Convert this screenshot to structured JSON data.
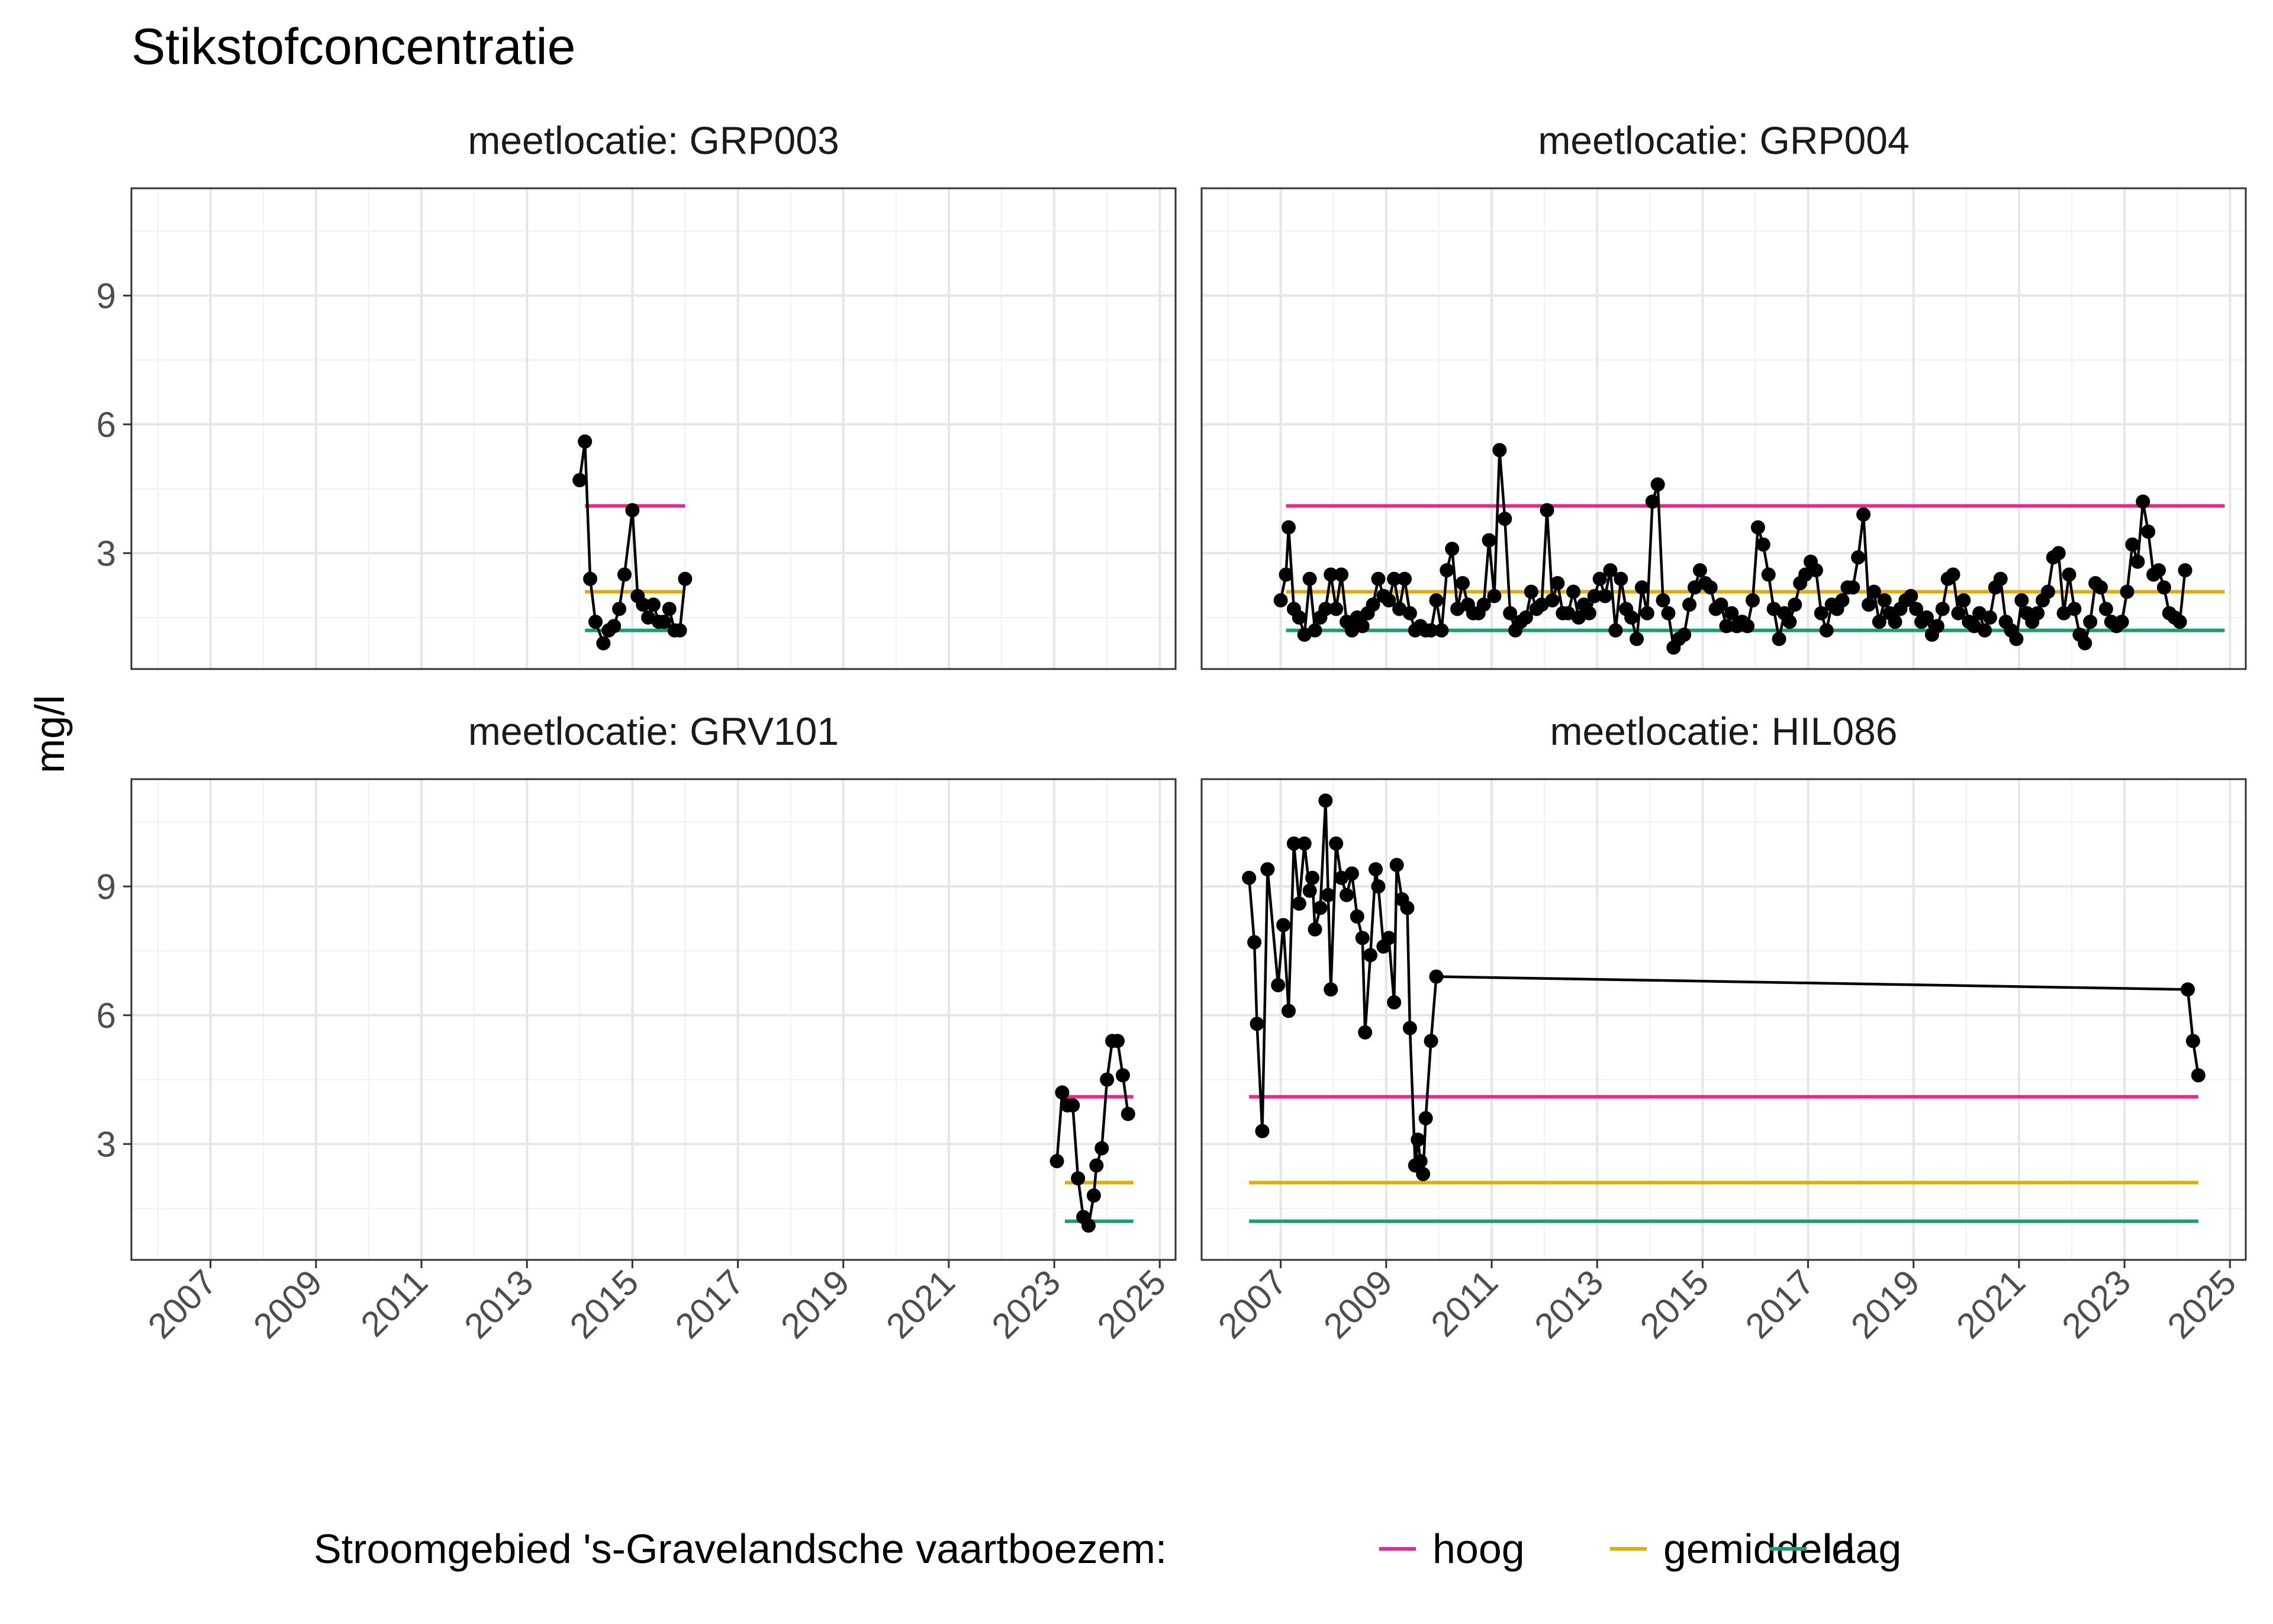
{
  "chart_data": {
    "type": "line",
    "title": "Stikstofconcentratie",
    "ylabel": "mg/l",
    "xlabel": "",
    "x_ticks": [
      "2007",
      "2009",
      "2011",
      "2013",
      "2015",
      "2017",
      "2019",
      "2021",
      "2023",
      "2025"
    ],
    "y_ticks": [
      3,
      6,
      9
    ],
    "xlim": [
      2005.5,
      2025.3
    ],
    "ylim": [
      0.3,
      11.5
    ],
    "grid": true,
    "legend": {
      "title": "Stroomgebied 's-Gravelandsche vaartboezem:",
      "position": "bottom",
      "items": [
        {
          "label": "hoog",
          "color": "#e7298a",
          "value": 4.1
        },
        {
          "label": "gemiddeld",
          "color": "#e6ab02",
          "value": 2.1
        },
        {
          "label": "laag",
          "color": "#1b9e77",
          "value": 1.2
        }
      ]
    },
    "panels": [
      {
        "name": "meetlocatie: GRP003",
        "ref_range": [
          2014.1,
          2016.0
        ],
        "points": [
          [
            2014.0,
            4.7
          ],
          [
            2014.1,
            5.6
          ],
          [
            2014.2,
            2.4
          ],
          [
            2014.3,
            1.4
          ],
          [
            2014.45,
            0.9
          ],
          [
            2014.55,
            1.2
          ],
          [
            2014.65,
            1.3
          ],
          [
            2014.75,
            1.7
          ],
          [
            2014.85,
            2.5
          ],
          [
            2015.0,
            4.0
          ],
          [
            2015.1,
            2.0
          ],
          [
            2015.2,
            1.8
          ],
          [
            2015.3,
            1.5
          ],
          [
            2015.4,
            1.8
          ],
          [
            2015.5,
            1.4
          ],
          [
            2015.6,
            1.4
          ],
          [
            2015.7,
            1.7
          ],
          [
            2015.8,
            1.2
          ],
          [
            2015.9,
            1.2
          ],
          [
            2016.0,
            2.4
          ]
        ]
      },
      {
        "name": "meetlocatie: GRP004",
        "ref_range": [
          2007.1,
          2024.9
        ],
        "points": [
          [
            2007.0,
            1.9
          ],
          [
            2007.1,
            2.5
          ],
          [
            2007.15,
            3.6
          ],
          [
            2007.25,
            1.7
          ],
          [
            2007.35,
            1.5
          ],
          [
            2007.45,
            1.1
          ],
          [
            2007.55,
            2.4
          ],
          [
            2007.65,
            1.2
          ],
          [
            2007.75,
            1.5
          ],
          [
            2007.85,
            1.7
          ],
          [
            2007.95,
            2.5
          ],
          [
            2008.05,
            1.7
          ],
          [
            2008.15,
            2.5
          ],
          [
            2008.25,
            1.4
          ],
          [
            2008.35,
            1.2
          ],
          [
            2008.45,
            1.5
          ],
          [
            2008.55,
            1.3
          ],
          [
            2008.65,
            1.6
          ],
          [
            2008.75,
            1.8
          ],
          [
            2008.85,
            2.4
          ],
          [
            2008.95,
            2.0
          ],
          [
            2009.05,
            1.9
          ],
          [
            2009.15,
            2.4
          ],
          [
            2009.25,
            1.7
          ],
          [
            2009.35,
            2.4
          ],
          [
            2009.45,
            1.6
          ],
          [
            2009.55,
            1.2
          ],
          [
            2009.65,
            1.3
          ],
          [
            2009.75,
            1.2
          ],
          [
            2009.85,
            1.2
          ],
          [
            2009.95,
            1.9
          ],
          [
            2010.05,
            1.2
          ],
          [
            2010.15,
            2.6
          ],
          [
            2010.25,
            3.1
          ],
          [
            2010.35,
            1.7
          ],
          [
            2010.45,
            2.3
          ],
          [
            2010.55,
            1.8
          ],
          [
            2010.65,
            1.6
          ],
          [
            2010.75,
            1.6
          ],
          [
            2010.85,
            1.8
          ],
          [
            2010.95,
            3.3
          ],
          [
            2011.05,
            2.0
          ],
          [
            2011.15,
            5.4
          ],
          [
            2011.25,
            3.8
          ],
          [
            2011.35,
            1.6
          ],
          [
            2011.45,
            1.2
          ],
          [
            2011.55,
            1.4
          ],
          [
            2011.65,
            1.5
          ],
          [
            2011.75,
            2.1
          ],
          [
            2011.85,
            1.7
          ],
          [
            2011.95,
            1.8
          ],
          [
            2012.05,
            4.0
          ],
          [
            2012.15,
            1.9
          ],
          [
            2012.25,
            2.3
          ],
          [
            2012.35,
            1.6
          ],
          [
            2012.45,
            1.6
          ],
          [
            2012.55,
            2.1
          ],
          [
            2012.65,
            1.5
          ],
          [
            2012.75,
            1.8
          ],
          [
            2012.85,
            1.6
          ],
          [
            2012.95,
            2.0
          ],
          [
            2013.05,
            2.4
          ],
          [
            2013.15,
            2.0
          ],
          [
            2013.25,
            2.6
          ],
          [
            2013.35,
            1.2
          ],
          [
            2013.45,
            2.4
          ],
          [
            2013.55,
            1.7
          ],
          [
            2013.65,
            1.5
          ],
          [
            2013.75,
            1.0
          ],
          [
            2013.85,
            2.2
          ],
          [
            2013.95,
            1.6
          ],
          [
            2014.05,
            4.2
          ],
          [
            2014.15,
            4.6
          ],
          [
            2014.25,
            1.9
          ],
          [
            2014.35,
            1.6
          ],
          [
            2014.45,
            0.8
          ],
          [
            2014.55,
            1.0
          ],
          [
            2014.65,
            1.1
          ],
          [
            2014.75,
            1.8
          ],
          [
            2014.85,
            2.2
          ],
          [
            2014.95,
            2.6
          ],
          [
            2015.05,
            2.3
          ],
          [
            2015.15,
            2.2
          ],
          [
            2015.25,
            1.7
          ],
          [
            2015.35,
            1.8
          ],
          [
            2015.45,
            1.3
          ],
          [
            2015.55,
            1.6
          ],
          [
            2015.65,
            1.3
          ],
          [
            2015.75,
            1.4
          ],
          [
            2015.85,
            1.3
          ],
          [
            2015.95,
            1.9
          ],
          [
            2016.05,
            3.6
          ],
          [
            2016.15,
            3.2
          ],
          [
            2016.25,
            2.5
          ],
          [
            2016.35,
            1.7
          ],
          [
            2016.45,
            1.0
          ],
          [
            2016.55,
            1.6
          ],
          [
            2016.65,
            1.4
          ],
          [
            2016.75,
            1.8
          ],
          [
            2016.85,
            2.3
          ],
          [
            2016.95,
            2.5
          ],
          [
            2017.05,
            2.8
          ],
          [
            2017.15,
            2.6
          ],
          [
            2017.25,
            1.6
          ],
          [
            2017.35,
            1.2
          ],
          [
            2017.45,
            1.8
          ],
          [
            2017.55,
            1.7
          ],
          [
            2017.65,
            1.9
          ],
          [
            2017.75,
            2.2
          ],
          [
            2017.85,
            2.2
          ],
          [
            2017.95,
            2.9
          ],
          [
            2018.05,
            3.9
          ],
          [
            2018.15,
            1.8
          ],
          [
            2018.25,
            2.1
          ],
          [
            2018.35,
            1.4
          ],
          [
            2018.45,
            1.9
          ],
          [
            2018.55,
            1.6
          ],
          [
            2018.65,
            1.4
          ],
          [
            2018.75,
            1.7
          ],
          [
            2018.85,
            1.9
          ],
          [
            2018.95,
            2.0
          ],
          [
            2019.05,
            1.7
          ],
          [
            2019.15,
            1.4
          ],
          [
            2019.25,
            1.5
          ],
          [
            2019.35,
            1.1
          ],
          [
            2019.45,
            1.3
          ],
          [
            2019.55,
            1.7
          ],
          [
            2019.65,
            2.4
          ],
          [
            2019.75,
            2.5
          ],
          [
            2019.85,
            1.6
          ],
          [
            2019.95,
            1.9
          ],
          [
            2020.05,
            1.4
          ],
          [
            2020.15,
            1.3
          ],
          [
            2020.25,
            1.6
          ],
          [
            2020.35,
            1.2
          ],
          [
            2020.45,
            1.5
          ],
          [
            2020.55,
            2.2
          ],
          [
            2020.65,
            2.4
          ],
          [
            2020.75,
            1.4
          ],
          [
            2020.85,
            1.2
          ],
          [
            2020.95,
            1.0
          ],
          [
            2021.05,
            1.9
          ],
          [
            2021.15,
            1.6
          ],
          [
            2021.25,
            1.4
          ],
          [
            2021.35,
            1.6
          ],
          [
            2021.45,
            1.9
          ],
          [
            2021.55,
            2.1
          ],
          [
            2021.65,
            2.9
          ],
          [
            2021.75,
            3.0
          ],
          [
            2021.85,
            1.6
          ],
          [
            2021.95,
            2.5
          ],
          [
            2022.05,
            1.7
          ],
          [
            2022.15,
            1.1
          ],
          [
            2022.25,
            0.9
          ],
          [
            2022.35,
            1.4
          ],
          [
            2022.45,
            2.3
          ],
          [
            2022.55,
            2.2
          ],
          [
            2022.65,
            1.7
          ],
          [
            2022.75,
            1.4
          ],
          [
            2022.85,
            1.3
          ],
          [
            2022.95,
            1.4
          ],
          [
            2023.05,
            2.1
          ],
          [
            2023.15,
            3.2
          ],
          [
            2023.25,
            2.8
          ],
          [
            2023.35,
            4.2
          ],
          [
            2023.45,
            3.5
          ],
          [
            2023.55,
            2.5
          ],
          [
            2023.65,
            2.6
          ],
          [
            2023.75,
            2.2
          ],
          [
            2023.85,
            1.6
          ],
          [
            2023.95,
            1.5
          ],
          [
            2024.05,
            1.4
          ],
          [
            2024.15,
            2.6
          ]
        ]
      },
      {
        "name": "meetlocatie: GRV101",
        "ref_range": [
          2023.2,
          2024.5
        ],
        "points": [
          [
            2023.05,
            2.6
          ],
          [
            2023.15,
            4.2
          ],
          [
            2023.25,
            3.9
          ],
          [
            2023.35,
            3.9
          ],
          [
            2023.45,
            2.2
          ],
          [
            2023.55,
            1.3
          ],
          [
            2023.65,
            1.1
          ],
          [
            2023.75,
            1.8
          ],
          [
            2023.8,
            2.5
          ],
          [
            2023.9,
            2.9
          ],
          [
            2024.0,
            4.5
          ],
          [
            2024.1,
            5.4
          ],
          [
            2024.2,
            5.4
          ],
          [
            2024.3,
            4.6
          ],
          [
            2024.4,
            3.7
          ]
        ]
      },
      {
        "name": "meetlocatie: HIL086",
        "ref_range": [
          2006.4,
          2024.4
        ],
        "points": [
          [
            2006.4,
            9.2
          ],
          [
            2006.5,
            7.7
          ],
          [
            2006.55,
            5.8
          ],
          [
            2006.65,
            3.3
          ],
          [
            2006.75,
            9.4
          ],
          [
            2006.95,
            6.7
          ],
          [
            2007.05,
            8.1
          ],
          [
            2007.15,
            6.1
          ],
          [
            2007.25,
            10.0
          ],
          [
            2007.35,
            8.6
          ],
          [
            2007.45,
            10.0
          ],
          [
            2007.55,
            8.9
          ],
          [
            2007.6,
            9.2
          ],
          [
            2007.65,
            8.0
          ],
          [
            2007.75,
            8.5
          ],
          [
            2007.85,
            11.0
          ],
          [
            2007.9,
            8.8
          ],
          [
            2007.95,
            6.6
          ],
          [
            2008.05,
            10.0
          ],
          [
            2008.15,
            9.2
          ],
          [
            2008.25,
            8.8
          ],
          [
            2008.35,
            9.3
          ],
          [
            2008.45,
            8.3
          ],
          [
            2008.55,
            7.8
          ],
          [
            2008.6,
            5.6
          ],
          [
            2008.7,
            7.4
          ],
          [
            2008.8,
            9.4
          ],
          [
            2008.85,
            9.0
          ],
          [
            2008.95,
            7.6
          ],
          [
            2009.05,
            7.8
          ],
          [
            2009.15,
            6.3
          ],
          [
            2009.2,
            9.5
          ],
          [
            2009.3,
            8.7
          ],
          [
            2009.4,
            8.5
          ],
          [
            2009.45,
            5.7
          ],
          [
            2009.55,
            2.5
          ],
          [
            2009.6,
            3.1
          ],
          [
            2009.65,
            2.6
          ],
          [
            2009.7,
            2.3
          ],
          [
            2009.75,
            3.6
          ],
          [
            2009.85,
            5.4
          ],
          [
            2009.95,
            6.9
          ],
          [
            2024.2,
            6.6
          ],
          [
            2024.3,
            5.4
          ],
          [
            2024.4,
            4.6
          ]
        ]
      }
    ]
  }
}
